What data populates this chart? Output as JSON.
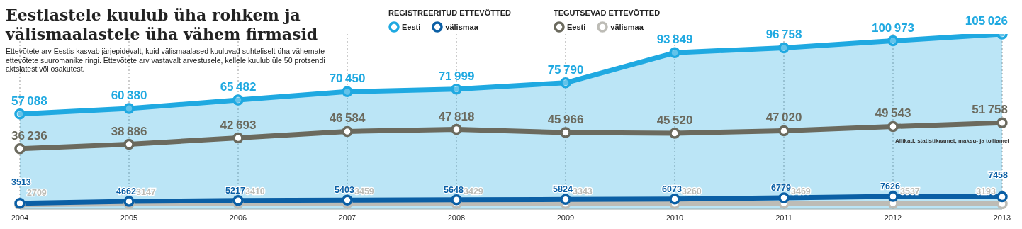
{
  "chart_data": {
    "type": "line",
    "title": "Eestlastele kuulub üha rohkem ja välismaalastele üha vähem firmasid",
    "subtitle": "Ettevõtete arv Eestis kasvab järjepidevalt, kuid välismaalased kuuluvad suhteliselt üha vähemate ettevõtete suuromanike ringi. Ettevõtete arv vastavalt arvestusele, kellele kuulub üle 50 protsendi aktsiatest või osakutest.",
    "categories": [
      "2004",
      "2005",
      "2006",
      "2007",
      "2008",
      "2009",
      "2010",
      "2011",
      "2012",
      "2013"
    ],
    "series": [
      {
        "name": "Eesti",
        "type": "area",
        "color": "#1fa9e1",
        "values": [
          57088,
          60380,
          65482,
          70450,
          71999,
          75790,
          93849,
          96758,
          100973,
          105026
        ]
      },
      {
        "name": "välismaa",
        "color": "#0b5fa5",
        "values": [
          3513,
          4662,
          5217,
          5403,
          5648,
          5824,
          6073,
          6779,
          7626,
          7458
        ]
      },
      {
        "name": "Eesti",
        "color": "#6b6a5e",
        "values": [
          36236,
          38886,
          42693,
          46584,
          47818,
          45966,
          45520,
          47020,
          49543,
          51758
        ]
      },
      {
        "name": "välismaa",
        "color": "#bdbcb6",
        "values": [
          2709,
          3147,
          3410,
          3459,
          3429,
          3343,
          3260,
          3469,
          3537,
          3193
        ]
      }
    ],
    "annotations": [
      "REGISTREERITUD ETTEVÕTTED",
      "TEGUTSEVAD ETTEVÕTTED",
      "Allikad: statistikaamet, maksu- ja tolliamet"
    ],
    "data_labels": true,
    "grid": "x",
    "legend": "top",
    "marker": "circle",
    "line_style": "solid"
  }
}
